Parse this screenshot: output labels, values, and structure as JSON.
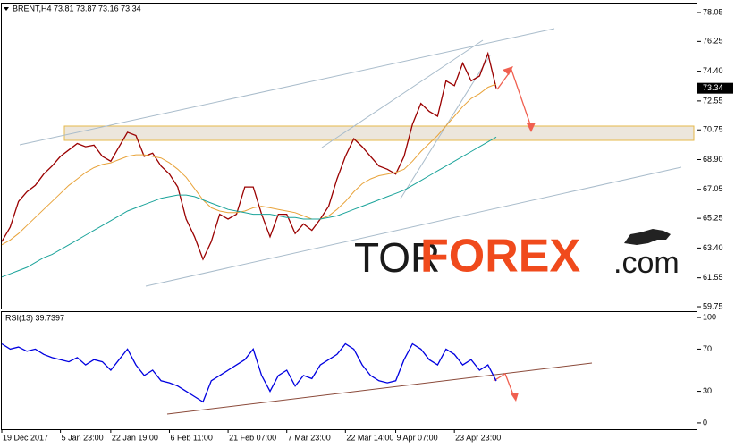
{
  "chart_data": [
    {
      "type": "line",
      "title": "BRENT,H4  73.81 73.87 73.16 73.34",
      "price_label": "73.34",
      "x": [
        0,
        1,
        2,
        3,
        4,
        5,
        6,
        7,
        8,
        9,
        10,
        11,
        12,
        13,
        14,
        15,
        16,
        17,
        18,
        19,
        20,
        21,
        22,
        23,
        24,
        25,
        26,
        27,
        28,
        29,
        30,
        31,
        32,
        33,
        34,
        35,
        36,
        37,
        38,
        39,
        40,
        41,
        42,
        43,
        44,
        45,
        46,
        47,
        48,
        49,
        50,
        51,
        52,
        53,
        54,
        55,
        56,
        57,
        58,
        59
      ],
      "series": [
        {
          "color": "#9a0000",
          "values": [
            63.8,
            64.7,
            66.3,
            66.9,
            67.3,
            68.0,
            68.5,
            69.1,
            69.5,
            69.9,
            69.7,
            69.8,
            69.1,
            68.8,
            69.7,
            70.6,
            70.4,
            69.1,
            69.3,
            68.5,
            68.0,
            67.2,
            65.2,
            64.1,
            62.7,
            63.8,
            65.5,
            65.2,
            65.5,
            67.2,
            67.2,
            65.5,
            64.1,
            65.5,
            65.5,
            64.3,
            64.9,
            64.5,
            65.2,
            66.0,
            67.7,
            69.1,
            70.2,
            69.7,
            69.1,
            68.5,
            68.3,
            68.0,
            69.1,
            71.1,
            72.4,
            71.9,
            71.6,
            73.8,
            73.5,
            74.9,
            73.8,
            74.1,
            75.5,
            73.34
          ]
        },
        {
          "color": "#e8a33a",
          "values": [
            63.6,
            63.9,
            64.3,
            64.8,
            65.3,
            65.8,
            66.3,
            66.8,
            67.3,
            67.7,
            68.1,
            68.4,
            68.6,
            68.7,
            68.9,
            69.1,
            69.2,
            69.2,
            69.1,
            69.0,
            68.7,
            68.3,
            67.8,
            67.1,
            66.4,
            65.9,
            65.7,
            65.6,
            65.6,
            65.7,
            65.9,
            66.0,
            65.9,
            65.8,
            65.7,
            65.6,
            65.4,
            65.2,
            65.2,
            65.4,
            65.8,
            66.3,
            66.9,
            67.4,
            67.7,
            67.9,
            68.0,
            68.1,
            68.3,
            68.8,
            69.4,
            69.9,
            70.4,
            71.0,
            71.6,
            72.2,
            72.7,
            73.0,
            73.4,
            73.6
          ]
        },
        {
          "color": "#1aa39a",
          "values": [
            61.6,
            61.8,
            62.0,
            62.2,
            62.5,
            62.8,
            63.0,
            63.3,
            63.6,
            63.9,
            64.2,
            64.5,
            64.8,
            65.1,
            65.4,
            65.7,
            65.9,
            66.1,
            66.3,
            66.5,
            66.6,
            66.7,
            66.7,
            66.6,
            66.4,
            66.2,
            66.0,
            65.8,
            65.7,
            65.6,
            65.5,
            65.5,
            65.5,
            65.4,
            65.3,
            65.3,
            65.2,
            65.2,
            65.2,
            65.3,
            65.4,
            65.6,
            65.8,
            66.0,
            66.2,
            66.4,
            66.6,
            66.8,
            67.0,
            67.3,
            67.6,
            67.9,
            68.2,
            68.5,
            68.8,
            69.1,
            69.4,
            69.7,
            70.0,
            70.3
          ]
        }
      ],
      "xlim": [
        0,
        83
      ],
      "ylim": [
        59.64,
        78.55
      ],
      "yticks": [
        78.05,
        76.25,
        {
          "value": 74.4,
          "label": "74.40"
        },
        72.55,
        70.75,
        {
          "value": 68.9,
          "label": "68.90"
        },
        67.05,
        65.25,
        {
          "value": 63.4,
          "label": "63.40"
        },
        61.55,
        59.75
      ]
    },
    {
      "type": "line",
      "title": "RSI(13) 39.7397",
      "x": [
        0,
        1,
        2,
        3,
        4,
        5,
        6,
        7,
        8,
        9,
        10,
        11,
        12,
        13,
        14,
        15,
        16,
        17,
        18,
        19,
        20,
        21,
        22,
        23,
        24,
        25,
        26,
        27,
        28,
        29,
        30,
        31,
        32,
        33,
        34,
        35,
        36,
        37,
        38,
        39,
        40,
        41,
        42,
        43,
        44,
        45,
        46,
        47,
        48,
        49,
        50,
        51,
        52,
        53,
        54,
        55,
        56,
        57,
        58,
        59
      ],
      "series": [
        {
          "color": "#0000e0",
          "values": [
            75,
            70,
            72,
            68,
            70,
            65,
            62,
            60,
            58,
            62,
            55,
            60,
            58,
            50,
            60,
            70,
            55,
            45,
            50,
            40,
            38,
            35,
            30,
            25,
            20,
            40,
            45,
            50,
            55,
            60,
            70,
            45,
            30,
            45,
            50,
            35,
            45,
            42,
            55,
            60,
            65,
            75,
            70,
            55,
            45,
            40,
            38,
            40,
            60,
            75,
            70,
            60,
            55,
            70,
            65,
            55,
            60,
            50,
            55,
            39.7397
          ]
        }
      ],
      "xlim": [
        0,
        83
      ],
      "ylim": [
        -6,
        106
      ],
      "yticks": [
        100,
        70,
        30,
        0
      ],
      "xticks": [
        {
          "value": 0,
          "label": "19 Dec 2017"
        },
        {
          "value": 7,
          "label": "5 Jan 23:00"
        },
        {
          "value": 13,
          "label": "22 Jan 19:00"
        },
        {
          "value": 20,
          "label": "6 Feb 11:00"
        },
        {
          "value": 27,
          "label": "21 Feb 07:00"
        },
        {
          "value": 34,
          "label": "7 Mar 23:00"
        },
        {
          "value": 41,
          "label": "22 Mar 14:00"
        },
        {
          "value": 47,
          "label": "9 Apr 07:00"
        },
        {
          "value": 54,
          "label": "23 Apr 23:00"
        }
      ]
    }
  ],
  "watermark": {
    "part1": "TOR",
    "part2": "FOREX",
    "part3": ".com"
  }
}
